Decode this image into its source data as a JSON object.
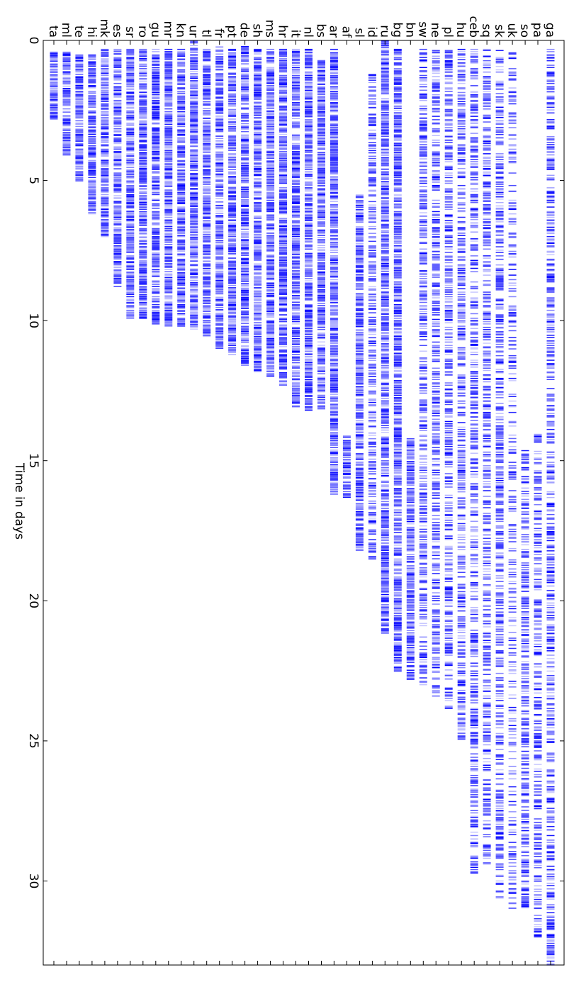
{
  "chart_data": {
    "type": "raster",
    "orientation": "rotated-90",
    "xlabel": "Time in days",
    "x_ticks": [
      0,
      5,
      10,
      15,
      20,
      25,
      30
    ],
    "xlim": [
      0,
      33
    ],
    "color": "#0000ff",
    "grid": false,
    "series": [
      {
        "name": "ta",
        "start": 0.4,
        "end": 2.8,
        "density": "high"
      },
      {
        "name": "ml",
        "start": 0.4,
        "end": 4.1,
        "density": "high"
      },
      {
        "name": "te",
        "start": 0.5,
        "end": 5.0,
        "density": "high"
      },
      {
        "name": "hi",
        "start": 0.5,
        "end": 6.2,
        "density": "high"
      },
      {
        "name": "mk",
        "start": 0.3,
        "end": 7.0,
        "density": "high"
      },
      {
        "name": "es",
        "start": 0.3,
        "end": 8.8,
        "density": "high"
      },
      {
        "name": "sr",
        "start": 0.3,
        "end": 9.9,
        "density": "high"
      },
      {
        "name": "ro",
        "start": 0.3,
        "end": 9.9,
        "density": "high"
      },
      {
        "name": "gu",
        "start": 0.3,
        "end": 10.1,
        "density": "high"
      },
      {
        "name": "mr",
        "start": 0.3,
        "end": 10.2,
        "density": "high"
      },
      {
        "name": "kn",
        "start": 0.3,
        "end": 10.2,
        "density": "high"
      },
      {
        "name": "ur",
        "start": 0.0,
        "end": 10.3,
        "density": "high"
      },
      {
        "name": "tl",
        "start": 0.3,
        "end": 10.6,
        "density": "high"
      },
      {
        "name": "fr",
        "start": 0.2,
        "end": 11.0,
        "density": "high"
      },
      {
        "name": "pt",
        "start": 0.3,
        "end": 11.2,
        "density": "high"
      },
      {
        "name": "de",
        "start": 0.2,
        "end": 11.6,
        "density": "high"
      },
      {
        "name": "sh",
        "start": 0.3,
        "end": 11.8,
        "density": "high"
      },
      {
        "name": "ms",
        "start": 0.3,
        "end": 12.0,
        "density": "high"
      },
      {
        "name": "hr",
        "start": 0.3,
        "end": 12.3,
        "density": "high"
      },
      {
        "name": "it",
        "start": 0.3,
        "end": 13.1,
        "density": "high"
      },
      {
        "name": "nl",
        "start": 0.3,
        "end": 13.2,
        "density": "high"
      },
      {
        "name": "bs",
        "start": 0.7,
        "end": 13.2,
        "density": "high"
      },
      {
        "name": "ar",
        "start": 0.3,
        "end": 16.2,
        "density": "high"
      },
      {
        "name": "af",
        "start": 14.1,
        "end": 16.3,
        "density": "high"
      },
      {
        "name": "sl",
        "start": 5.5,
        "end": 18.2,
        "density": "high"
      },
      {
        "name": "id",
        "start": 1.2,
        "end": 18.7,
        "density": "medium"
      },
      {
        "name": "ru",
        "start": 0.0,
        "end": 21.2,
        "density": "high"
      },
      {
        "name": "bg",
        "start": 0.3,
        "end": 22.5,
        "density": "high"
      },
      {
        "name": "bn",
        "start": 14.2,
        "end": 22.8,
        "density": "high"
      },
      {
        "name": "sw",
        "start": 0.3,
        "end": 23.0,
        "density": "medium"
      },
      {
        "name": "ne",
        "start": 0.3,
        "end": 23.5,
        "density": "medium"
      },
      {
        "name": "pl",
        "start": 0.3,
        "end": 23.9,
        "density": "medium"
      },
      {
        "name": "hu",
        "start": 0.3,
        "end": 25.0,
        "density": "medium"
      },
      {
        "name": "ceb",
        "start": 0.3,
        "end": 29.7,
        "density": "medium"
      },
      {
        "name": "sq",
        "start": 0.3,
        "end": 29.4,
        "density": "medium"
      },
      {
        "name": "sk",
        "start": 0.3,
        "end": 30.6,
        "density": "medium"
      },
      {
        "name": "uk",
        "start": 0.3,
        "end": 31.0,
        "density": "low"
      },
      {
        "name": "so",
        "start": 14.5,
        "end": 31.0,
        "density": "medium"
      },
      {
        "name": "pa",
        "start": 14.0,
        "end": 32.0,
        "density": "medium"
      },
      {
        "name": "ga",
        "start": 0.3,
        "end": 33.0,
        "density": "medium"
      }
    ]
  }
}
